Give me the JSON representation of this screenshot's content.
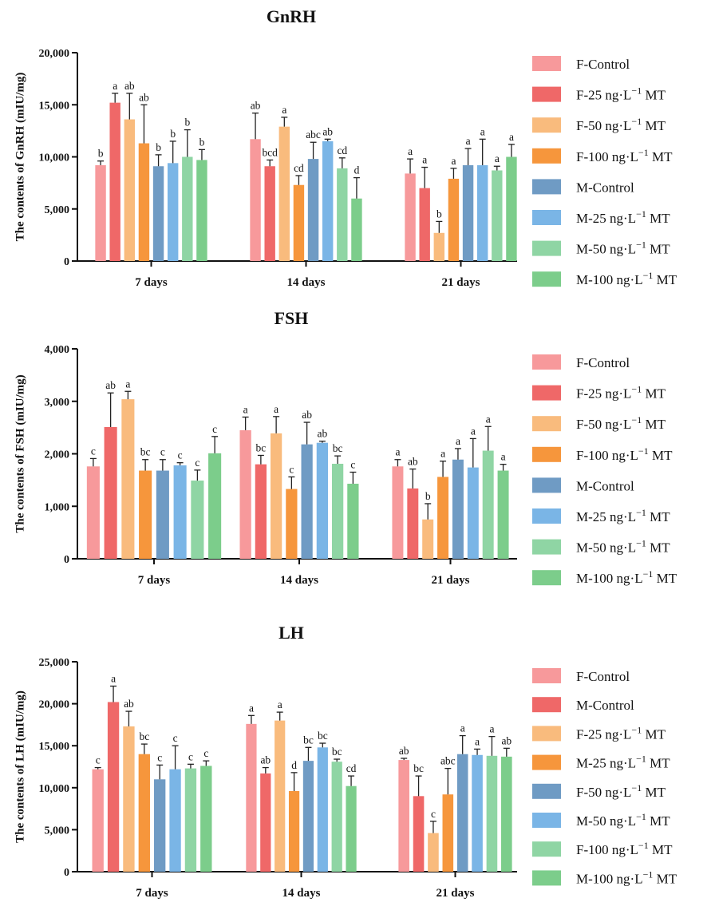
{
  "chart_data": [
    {
      "type": "bar",
      "title": "GnRH",
      "ylabel": "The contents of GnRH (mIU/mg)",
      "xlabel": "",
      "ylim": [
        0,
        20000
      ],
      "yticks": [
        "0",
        "5,000",
        "10,000",
        "15,000",
        "20,000"
      ],
      "categories": [
        "7 days",
        "14 days",
        "21 days"
      ],
      "legend": [
        "F-Control",
        "F-25 ng·L",
        "F-50 ng·L",
        "F-100 ng·L",
        "M-Control",
        "M-25 ng·L",
        "M-50 ng·L",
        "M-100 ng·L"
      ],
      "legend_sup": [
        "",
        "−1",
        "−1",
        "−1",
        "",
        "−1",
        "−1",
        "−1"
      ],
      "legend_suffix": [
        "",
        " MT",
        " MT",
        " MT",
        "",
        " MT",
        " MT",
        " MT"
      ],
      "series_colors": [
        "#f7999b",
        "#ef6868",
        "#f9bb7d",
        "#f6963c",
        "#6f9bc4",
        "#7ab5e6",
        "#8fd5a4",
        "#7ccd8b"
      ],
      "series": [
        {
          "name": "F-Control",
          "values": [
            9200,
            11700,
            8400
          ],
          "errors": [
            400,
            2500,
            1400
          ],
          "letters": [
            "b",
            "ab",
            "a"
          ]
        },
        {
          "name": "F-25 ng·L−1 MT",
          "values": [
            15200,
            9100,
            7000
          ],
          "errors": [
            900,
            600,
            2000
          ],
          "letters": [
            "a",
            "bcd",
            "a"
          ]
        },
        {
          "name": "F-50 ng·L−1 MT",
          "values": [
            13600,
            12900,
            2700
          ],
          "errors": [
            2500,
            900,
            1100
          ],
          "letters": [
            "ab",
            "a",
            "b"
          ]
        },
        {
          "name": "F-100 ng·L−1 MT",
          "values": [
            11300,
            7300,
            7900
          ],
          "errors": [
            3700,
            900,
            1000
          ],
          "letters": [
            "ab",
            "cd",
            "a"
          ]
        },
        {
          "name": "M-Control",
          "values": [
            9100,
            9800,
            9200
          ],
          "errors": [
            1100,
            1600,
            1600
          ],
          "letters": [
            "b",
            "abc",
            "a"
          ]
        },
        {
          "name": "M-25 ng·L−1 MT",
          "values": [
            9400,
            11500,
            9200
          ],
          "errors": [
            2100,
            200,
            2500
          ],
          "letters": [
            "b",
            "ab",
            "a"
          ]
        },
        {
          "name": "M-50 ng·L−1 MT",
          "values": [
            10000,
            8900,
            8700
          ],
          "errors": [
            2600,
            1000,
            400
          ],
          "letters": [
            "b",
            "cd",
            "a"
          ]
        },
        {
          "name": "M-100 ng·L−1 MT",
          "values": [
            9700,
            6000,
            10000
          ],
          "errors": [
            1000,
            2000,
            1200
          ],
          "letters": [
            "b",
            "d",
            "a"
          ]
        }
      ]
    },
    {
      "type": "bar",
      "title": "FSH",
      "ylabel": "The contents of FSH (mIU/mg)",
      "xlabel": "",
      "ylim": [
        0,
        4000
      ],
      "yticks": [
        "0",
        "1,000",
        "2,000",
        "3,000",
        "4,000"
      ],
      "categories": [
        "7 days",
        "14 days",
        "21 days"
      ],
      "legend": [
        "F-Control",
        "F-25 ng·L",
        "F-50 ng·L",
        "F-100 ng·L",
        "M-Control",
        "M-25 ng·L",
        "M-50 ng·L",
        "M-100 ng·L"
      ],
      "legend_sup": [
        "",
        "−1",
        "−1",
        "−1",
        "",
        "−1",
        "−1",
        "−1"
      ],
      "legend_suffix": [
        "",
        " MT",
        " MT",
        " MT",
        "",
        " MT",
        " MT",
        " MT"
      ],
      "series_colors": [
        "#f7999b",
        "#ef6868",
        "#f9bb7d",
        "#f6963c",
        "#6f9bc4",
        "#7ab5e6",
        "#8fd5a4",
        "#7ccd8b"
      ],
      "series": [
        {
          "name": "F-Control",
          "values": [
            1760,
            2450,
            1760
          ],
          "errors": [
            150,
            250,
            130
          ],
          "letters": [
            "c",
            "a",
            "a"
          ]
        },
        {
          "name": "F-25 ng·L−1 MT",
          "values": [
            2510,
            1800,
            1340
          ],
          "errors": [
            650,
            170,
            370
          ],
          "letters": [
            "ab",
            "bc",
            "ab"
          ]
        },
        {
          "name": "F-50 ng·L−1 MT",
          "values": [
            3040,
            2390,
            750
          ],
          "errors": [
            150,
            320,
            300
          ],
          "letters": [
            "a",
            "a",
            "b"
          ]
        },
        {
          "name": "F-100 ng·L−1 MT",
          "values": [
            1680,
            1330,
            1560
          ],
          "errors": [
            210,
            230,
            300
          ],
          "letters": [
            "bc",
            "c",
            "a"
          ]
        },
        {
          "name": "M-Control",
          "values": [
            1680,
            2180,
            1890
          ],
          "errors": [
            210,
            420,
            210
          ],
          "letters": [
            "c",
            "ab",
            "a"
          ]
        },
        {
          "name": "M-25 ng·L−1 MT",
          "values": [
            1780,
            2210,
            1740
          ],
          "errors": [
            50,
            30,
            550
          ],
          "letters": [
            "c",
            "ab",
            "a"
          ]
        },
        {
          "name": "M-50 ng·L−1 MT",
          "values": [
            1490,
            1810,
            2060
          ],
          "errors": [
            200,
            150,
            460
          ],
          "letters": [
            "c",
            "bc",
            "a"
          ]
        },
        {
          "name": "M-100 ng·L−1 MT",
          "values": [
            2010,
            1430,
            1680
          ],
          "errors": [
            320,
            220,
            120
          ],
          "letters": [
            "c",
            "c",
            "a"
          ]
        }
      ]
    },
    {
      "type": "bar",
      "title": "LH",
      "ylabel": "The contents of LH (mIU/mg)",
      "xlabel": "",
      "ylim": [
        0,
        25000
      ],
      "yticks": [
        "0",
        "5,000",
        "10,000",
        "15,000",
        "20,000",
        "25,000"
      ],
      "categories": [
        "7 days",
        "14 days",
        "21 days"
      ],
      "legend": [
        "F-Control",
        "M-Control",
        "F-25 ng·L",
        "M-25 ng·L",
        "F-50 ng·L",
        "M-50 ng·L",
        "F-100 ng·L",
        "M-100 ng·L"
      ],
      "legend_sup": [
        "",
        "",
        "−1",
        "−1",
        "−1",
        "−1",
        "−1",
        "−1"
      ],
      "legend_suffix": [
        "",
        "",
        " MT",
        " MT",
        " MT",
        " MT",
        " MT",
        " MT"
      ],
      "series_colors": [
        "#f7999b",
        "#ef6868",
        "#f9bb7d",
        "#f6963c",
        "#6f9bc4",
        "#7ab5e6",
        "#8fd5a4",
        "#7ccd8b"
      ],
      "series": [
        {
          "name": "F-Control",
          "values": [
            12200,
            17600,
            13300
          ],
          "errors": [
            200,
            1000,
            200
          ],
          "letters": [
            "c",
            "a",
            "ab"
          ]
        },
        {
          "name": "M-Control",
          "values": [
            20200,
            11700,
            9000
          ],
          "errors": [
            1900,
            700,
            2400
          ],
          "letters": [
            "a",
            "ab",
            "bc"
          ]
        },
        {
          "name": "F-25 ng·L−1 MT",
          "values": [
            17300,
            18000,
            4600
          ],
          "errors": [
            1800,
            1000,
            1400
          ],
          "letters": [
            "ab",
            "a",
            "c"
          ]
        },
        {
          "name": "M-25 ng·L−1 MT",
          "values": [
            14000,
            9600,
            9200
          ],
          "errors": [
            1200,
            2200,
            3100
          ],
          "letters": [
            "bc",
            "d",
            "abc"
          ]
        },
        {
          "name": "F-50 ng·L−1 MT",
          "values": [
            11000,
            13200,
            14000
          ],
          "errors": [
            1700,
            1600,
            2200
          ],
          "letters": [
            "c",
            "bc",
            "a"
          ]
        },
        {
          "name": "M-50 ng·L−1 MT",
          "values": [
            12200,
            14800,
            13900
          ],
          "errors": [
            2800,
            500,
            700
          ],
          "letters": [
            "c",
            "bc",
            "a"
          ]
        },
        {
          "name": "F-100 ng·L−1 MT",
          "values": [
            12300,
            13100,
            13800
          ],
          "errors": [
            500,
            300,
            2300
          ],
          "letters": [
            "c",
            "bc",
            "a"
          ]
        },
        {
          "name": "M-100 ng·L−1 MT",
          "values": [
            12600,
            10200,
            13700
          ],
          "errors": [
            600,
            1200,
            1000
          ],
          "letters": [
            "c",
            "cd",
            "ab"
          ]
        }
      ]
    }
  ]
}
